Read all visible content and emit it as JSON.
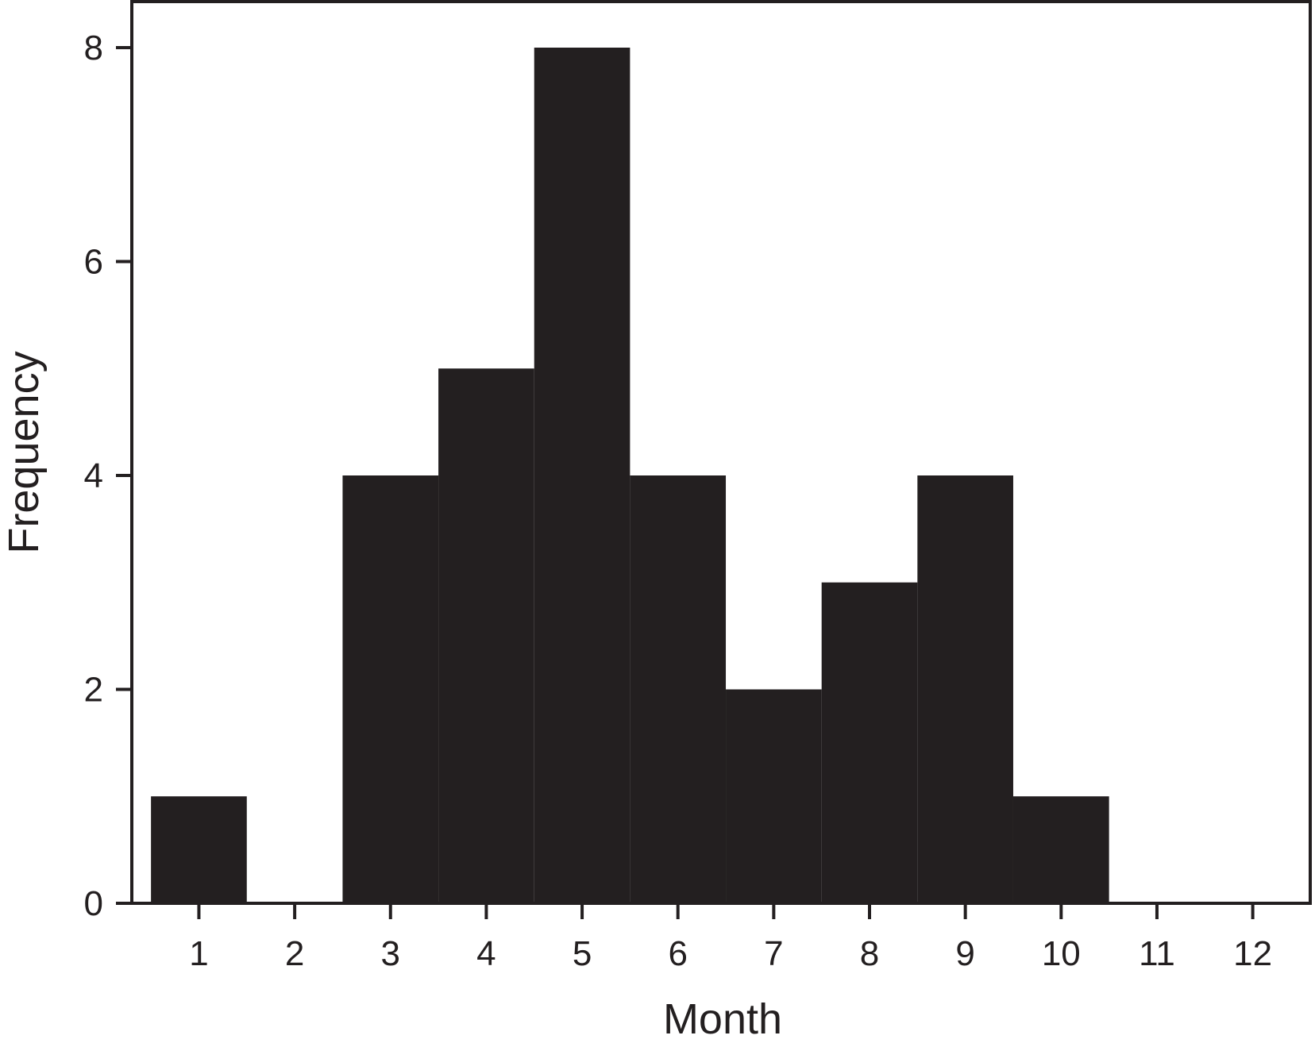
{
  "chart_data": {
    "type": "bar",
    "categories": [
      "1",
      "2",
      "3",
      "4",
      "5",
      "6",
      "7",
      "8",
      "9",
      "10",
      "11",
      "12"
    ],
    "values": [
      1,
      0,
      4,
      5,
      8,
      4,
      2,
      3,
      4,
      1,
      0,
      0
    ],
    "title": "",
    "xlabel": "Month",
    "ylabel": "Frequency",
    "ylim": [
      0,
      8
    ],
    "yticks": [
      "0",
      "2",
      "4",
      "6",
      "8"
    ],
    "xlim": [
      0.3,
      12.6
    ],
    "grid": false,
    "bar_color": "#231f20",
    "axis_color": "#231f20"
  }
}
